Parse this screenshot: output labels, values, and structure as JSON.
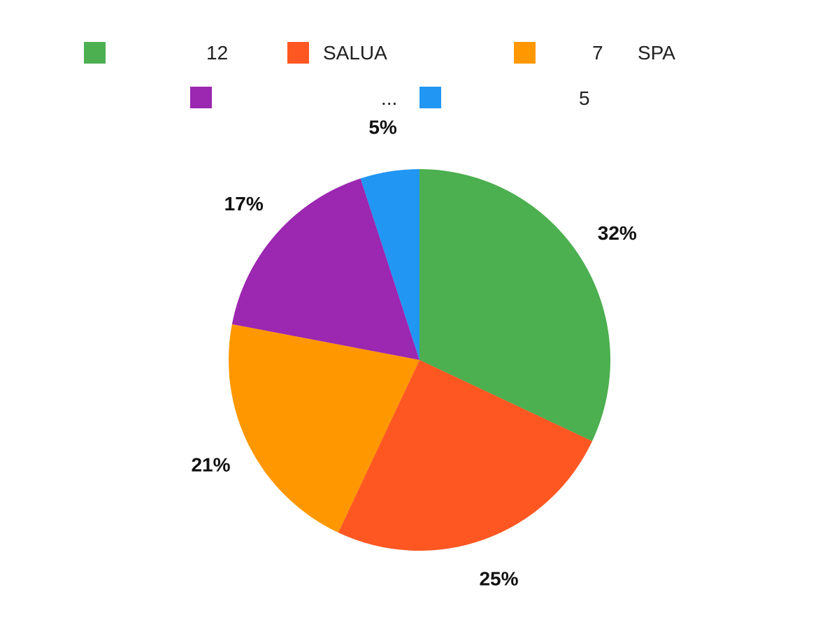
{
  "chart_data": {
    "type": "pie",
    "title": "",
    "legend_position": "top",
    "start_angle_deg": 0,
    "direction": "clockwise",
    "slices": [
      {
        "legend": "12",
        "value": 32,
        "label": "32%",
        "color": "#4CAF50"
      },
      {
        "legend": "SALUA",
        "value": 25,
        "label": "25%",
        "color": "#FF5722"
      },
      {
        "legend": "7",
        "value": 21,
        "label": "21%",
        "color": "#FF9800"
      },
      {
        "legend": "",
        "value": 17,
        "label": "17%",
        "color": "#9C27B0"
      },
      {
        "legend": "",
        "value": 5,
        "label": "5%",
        "color": "#2196F3"
      }
    ],
    "extra_legend_text": [
      "SPA",
      "...",
      "5"
    ]
  }
}
